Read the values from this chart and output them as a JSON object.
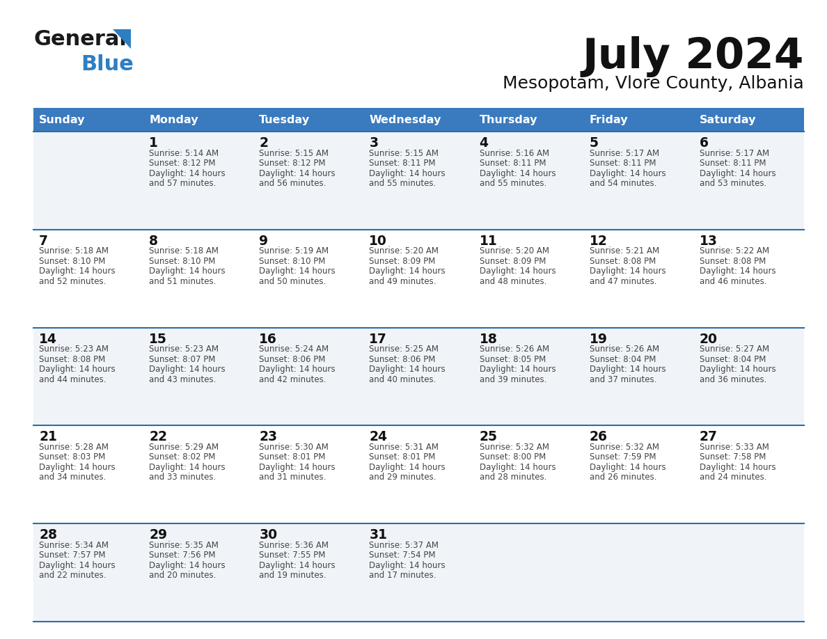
{
  "title": "July 2024",
  "subtitle": "Mesopotam, Vlore County, Albania",
  "header_bg": "#3a7abf",
  "header_text_color": "#ffffff",
  "days_of_week": [
    "Sunday",
    "Monday",
    "Tuesday",
    "Wednesday",
    "Thursday",
    "Friday",
    "Saturday"
  ],
  "row_bg_odd": "#f0f4f8",
  "row_bg_even": "#ffffff",
  "row_divider_color": "#2e6da4",
  "cell_text_color": "#444444",
  "day_number_color": "#111111",
  "logo_general_color": "#1a1a1a",
  "logo_blue_color": "#2e7fc1",
  "calendar": [
    [
      {
        "day": "",
        "sunrise": "",
        "sunset": "",
        "daylight": ""
      },
      {
        "day": "1",
        "sunrise": "5:14 AM",
        "sunset": "8:12 PM",
        "daylight": "14 hours and 57 minutes."
      },
      {
        "day": "2",
        "sunrise": "5:15 AM",
        "sunset": "8:12 PM",
        "daylight": "14 hours and 56 minutes."
      },
      {
        "day": "3",
        "sunrise": "5:15 AM",
        "sunset": "8:11 PM",
        "daylight": "14 hours and 55 minutes."
      },
      {
        "day": "4",
        "sunrise": "5:16 AM",
        "sunset": "8:11 PM",
        "daylight": "14 hours and 55 minutes."
      },
      {
        "day": "5",
        "sunrise": "5:17 AM",
        "sunset": "8:11 PM",
        "daylight": "14 hours and 54 minutes."
      },
      {
        "day": "6",
        "sunrise": "5:17 AM",
        "sunset": "8:11 PM",
        "daylight": "14 hours and 53 minutes."
      }
    ],
    [
      {
        "day": "7",
        "sunrise": "5:18 AM",
        "sunset": "8:10 PM",
        "daylight": "14 hours and 52 minutes."
      },
      {
        "day": "8",
        "sunrise": "5:18 AM",
        "sunset": "8:10 PM",
        "daylight": "14 hours and 51 minutes."
      },
      {
        "day": "9",
        "sunrise": "5:19 AM",
        "sunset": "8:10 PM",
        "daylight": "14 hours and 50 minutes."
      },
      {
        "day": "10",
        "sunrise": "5:20 AM",
        "sunset": "8:09 PM",
        "daylight": "14 hours and 49 minutes."
      },
      {
        "day": "11",
        "sunrise": "5:20 AM",
        "sunset": "8:09 PM",
        "daylight": "14 hours and 48 minutes."
      },
      {
        "day": "12",
        "sunrise": "5:21 AM",
        "sunset": "8:08 PM",
        "daylight": "14 hours and 47 minutes."
      },
      {
        "day": "13",
        "sunrise": "5:22 AM",
        "sunset": "8:08 PM",
        "daylight": "14 hours and 46 minutes."
      }
    ],
    [
      {
        "day": "14",
        "sunrise": "5:23 AM",
        "sunset": "8:08 PM",
        "daylight": "14 hours and 44 minutes."
      },
      {
        "day": "15",
        "sunrise": "5:23 AM",
        "sunset": "8:07 PM",
        "daylight": "14 hours and 43 minutes."
      },
      {
        "day": "16",
        "sunrise": "5:24 AM",
        "sunset": "8:06 PM",
        "daylight": "14 hours and 42 minutes."
      },
      {
        "day": "17",
        "sunrise": "5:25 AM",
        "sunset": "8:06 PM",
        "daylight": "14 hours and 40 minutes."
      },
      {
        "day": "18",
        "sunrise": "5:26 AM",
        "sunset": "8:05 PM",
        "daylight": "14 hours and 39 minutes."
      },
      {
        "day": "19",
        "sunrise": "5:26 AM",
        "sunset": "8:04 PM",
        "daylight": "14 hours and 37 minutes."
      },
      {
        "day": "20",
        "sunrise": "5:27 AM",
        "sunset": "8:04 PM",
        "daylight": "14 hours and 36 minutes."
      }
    ],
    [
      {
        "day": "21",
        "sunrise": "5:28 AM",
        "sunset": "8:03 PM",
        "daylight": "14 hours and 34 minutes."
      },
      {
        "day": "22",
        "sunrise": "5:29 AM",
        "sunset": "8:02 PM",
        "daylight": "14 hours and 33 minutes."
      },
      {
        "day": "23",
        "sunrise": "5:30 AM",
        "sunset": "8:01 PM",
        "daylight": "14 hours and 31 minutes."
      },
      {
        "day": "24",
        "sunrise": "5:31 AM",
        "sunset": "8:01 PM",
        "daylight": "14 hours and 29 minutes."
      },
      {
        "day": "25",
        "sunrise": "5:32 AM",
        "sunset": "8:00 PM",
        "daylight": "14 hours and 28 minutes."
      },
      {
        "day": "26",
        "sunrise": "5:32 AM",
        "sunset": "7:59 PM",
        "daylight": "14 hours and 26 minutes."
      },
      {
        "day": "27",
        "sunrise": "5:33 AM",
        "sunset": "7:58 PM",
        "daylight": "14 hours and 24 minutes."
      }
    ],
    [
      {
        "day": "28",
        "sunrise": "5:34 AM",
        "sunset": "7:57 PM",
        "daylight": "14 hours and 22 minutes."
      },
      {
        "day": "29",
        "sunrise": "5:35 AM",
        "sunset": "7:56 PM",
        "daylight": "14 hours and 20 minutes."
      },
      {
        "day": "30",
        "sunrise": "5:36 AM",
        "sunset": "7:55 PM",
        "daylight": "14 hours and 19 minutes."
      },
      {
        "day": "31",
        "sunrise": "5:37 AM",
        "sunset": "7:54 PM",
        "daylight": "14 hours and 17 minutes."
      },
      {
        "day": "",
        "sunrise": "",
        "sunset": "",
        "daylight": ""
      },
      {
        "day": "",
        "sunrise": "",
        "sunset": "",
        "daylight": ""
      },
      {
        "day": "",
        "sunrise": "",
        "sunset": "",
        "daylight": ""
      }
    ]
  ]
}
